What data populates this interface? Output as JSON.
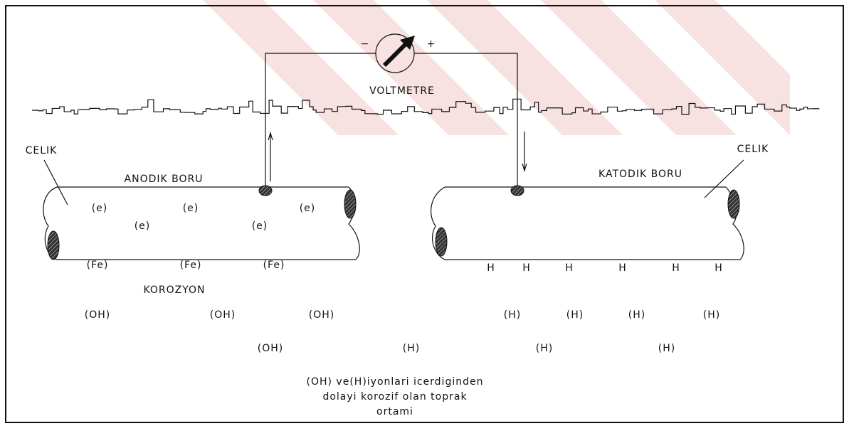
{
  "meter": {
    "label": "VOLTMETRE",
    "minus": "−",
    "plus": "+"
  },
  "pipes": [
    {
      "name": "ANODIK BORU",
      "material": "CELIK"
    },
    {
      "name": "KATODIK BORU",
      "material": "CELIK"
    }
  ],
  "electrons": [
    "(e)",
    "(e)",
    "(e)",
    "(e)",
    "(e)"
  ],
  "iron": [
    "(Fe)",
    "(Fe)",
    "(Fe)"
  ],
  "corrosion": "KOROZYON",
  "hydrogen_atoms": [
    "H",
    "H",
    "H",
    "H",
    "H",
    "H"
  ],
  "soil_ions": [
    "(OH)",
    "(OH)",
    "(OH)",
    "(OH)",
    "(H)",
    "(H)",
    "(H)",
    "(H)",
    "(H)",
    "(H)",
    "(H)"
  ],
  "caption": [
    "(OH) ve(H)iyonlari icerdiginden",
    "dolayi korozif olan toprak",
    "ortami"
  ]
}
